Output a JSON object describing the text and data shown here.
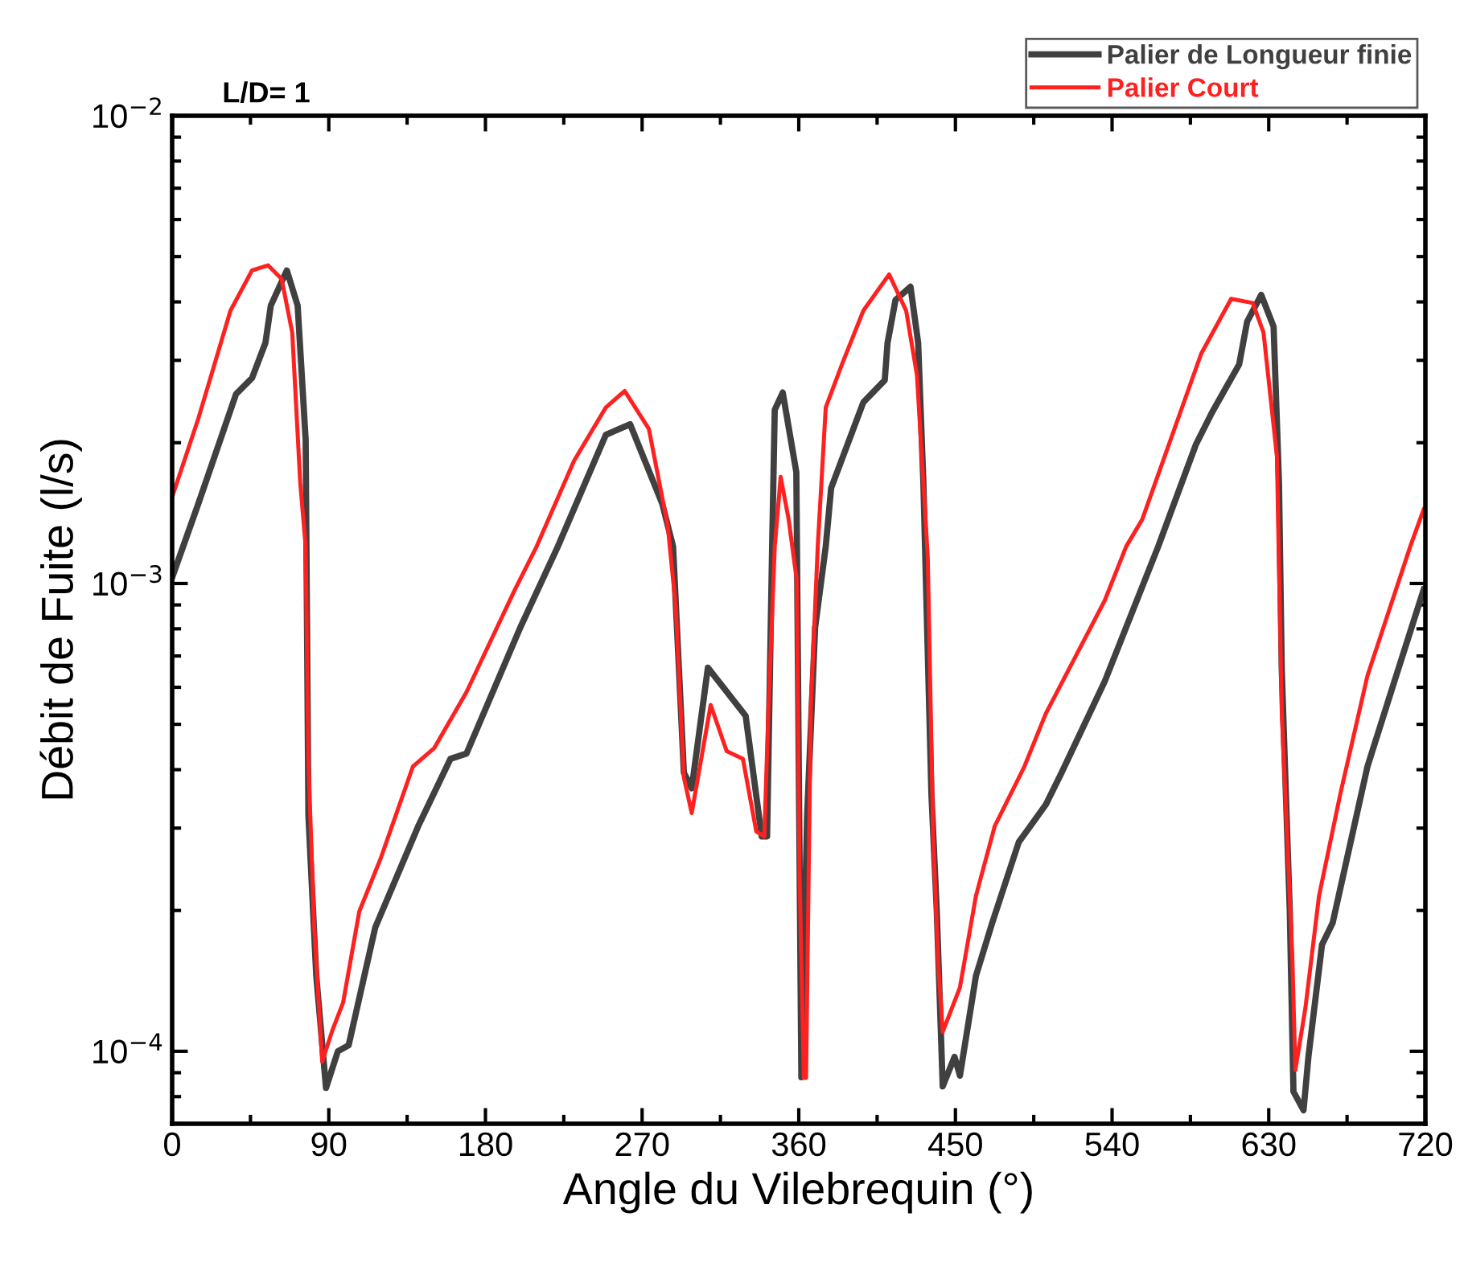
{
  "chart_data": {
    "type": "line",
    "title": "L/D= 1",
    "xlabel": "Angle du Vilebrequin (°)",
    "ylabel": "Débit de Fuite (l/s)",
    "log": "y",
    "grid": false,
    "legend": "top right",
    "marker": "none",
    "line_style": "solid",
    "xlim": [
      0,
      720
    ],
    "xticks": [
      0,
      90,
      180,
      270,
      360,
      450,
      540,
      630,
      720
    ],
    "ylim": [
      7e-05,
      0.01
    ],
    "yticks": [
      {
        "value": 0.0001,
        "label": "10$^{−4}$"
      },
      {
        "value": 0.001,
        "label": "10$^{−3}$"
      },
      {
        "value": 0.01,
        "label": "10$^{−2}$"
      }
    ],
    "series": [
      {
        "name": "Palier de Longueur finie",
        "color": "#404040",
        "x": [
          0,
          15,
          36.7,
          45.9,
          53.6,
          56.7,
          65.9,
          72.1,
          76.7,
          78.3,
          82.8,
          88.4,
          95.2,
          101.4,
          116.7,
          141.4,
          159.9,
          169.1,
          200,
          221.6,
          249.2,
          263.1,
          281.6,
          287.8,
          294,
          298.5,
          307.8,
          329.5,
          338.7,
          341.8,
          344.7,
          346.2,
          350.8,
          358.6,
          361.5,
          364.8,
          369.4,
          375.5,
          378.6,
          397.1,
          409.4,
          411,
          415.6,
          424.2,
          428.6,
          431.6,
          436.2,
          439.3,
          442.7,
          449.5,
          452.6,
          461.8,
          471.1,
          486.4,
          502,
          511,
          535.8,
          566.5,
          588.1,
          597.4,
          613,
          617.6,
          625.7,
          632.8,
          635.9,
          637.5,
          642.1,
          644.2,
          650,
          652.8,
          660.6,
          666.7,
          686.7,
          702.2,
          719
        ],
        "values": [
          0.00103,
          0.00148,
          0.00254,
          0.00275,
          0.00327,
          0.00393,
          0.00467,
          0.00393,
          0.00203,
          0.000319,
          0.000145,
          8.35e-05,
          0.0001,
          0.000103,
          0.000184,
          0.000303,
          0.000422,
          0.000433,
          0.000805,
          0.0012,
          0.00208,
          0.00219,
          0.00148,
          0.0012,
          0.000394,
          0.000365,
          0.000661,
          0.000521,
          0.000288,
          0.000288,
          0.0012,
          0.00235,
          0.00256,
          0.00173,
          8.8e-05,
          0.000319,
          0.000805,
          0.0012,
          0.0016,
          0.00244,
          0.00272,
          0.00327,
          0.00404,
          0.00431,
          0.00327,
          0.00164,
          0.000356,
          0.000199,
          8.41e-05,
          9.73e-05,
          8.87e-05,
          0.000145,
          0.000188,
          0.00028,
          0.000337,
          0.000394,
          0.000618,
          0.0012,
          0.00198,
          0.00232,
          0.00294,
          0.00363,
          0.00414,
          0.00354,
          0.00164,
          0.000652,
          0.000199,
          8.2e-05,
          7.48e-05,
          9.73e-05,
          0.000169,
          0.000188,
          0.000406,
          0.000618,
          0.00097
        ]
      },
      {
        "name": "Palier Court",
        "color": "#ff2020",
        "x": [
          0,
          15,
          33.5,
          45.9,
          55.1,
          62.9,
          69,
          73.6,
          76.7,
          78.3,
          81.5,
          86.2,
          92.1,
          98.2,
          107.5,
          119.9,
          138.3,
          150.6,
          169.1,
          196.9,
          209.4,
          230.9,
          249.2,
          260,
          273.9,
          284.7,
          289.3,
          294,
          298.5,
          309.4,
          318.6,
          327.9,
          335.6,
          340.2,
          342.6,
          346.2,
          349.6,
          354.2,
          358.8,
          360.4,
          362.9,
          364.2,
          366.9,
          370.9,
          375.5,
          384.8,
          397.1,
          411.9,
          421.7,
          427.9,
          434.1,
          437.2,
          440.2,
          442.7,
          452.6,
          461.8,
          472.6,
          489.6,
          502,
          535.8,
          548.1,
          557.3,
          591.2,
          608.4,
          620.8,
          627,
          634.7,
          637.5,
          641.1,
          643.6,
          645.3,
          651.1,
          658.9,
          671.2,
          686.7,
          711.3,
          719
        ],
        "values": [
          0.00153,
          0.00225,
          0.00383,
          0.00467,
          0.00479,
          0.00448,
          0.00344,
          0.00164,
          0.0012,
          0.000416,
          0.000188,
          9.5e-05,
          0.000111,
          0.000127,
          0.000199,
          0.000259,
          0.000406,
          0.000445,
          0.000586,
          0.00097,
          0.0012,
          0.00183,
          0.00238,
          0.00258,
          0.00214,
          0.00133,
          0.000895,
          0.000385,
          0.000323,
          0.00055,
          0.000438,
          0.000422,
          0.000295,
          0.000288,
          0.000542,
          0.0012,
          0.00169,
          0.00137,
          0.00102,
          0.000245,
          8.77e-05,
          8.77e-05,
          0.000542,
          0.0012,
          0.00238,
          0.00294,
          0.00383,
          0.00458,
          0.00383,
          0.00279,
          0.00114,
          0.000288,
          0.000152,
          0.00011,
          0.000137,
          0.000215,
          0.000303,
          0.000406,
          0.000528,
          0.00092,
          0.0012,
          0.00137,
          0.0031,
          0.00406,
          0.00398,
          0.00344,
          0.00187,
          0.000528,
          0.000259,
          0.000157,
          9.12e-05,
          0.000124,
          0.000215,
          0.000356,
          0.000635,
          0.0012,
          0.00144
        ]
      }
    ]
  }
}
